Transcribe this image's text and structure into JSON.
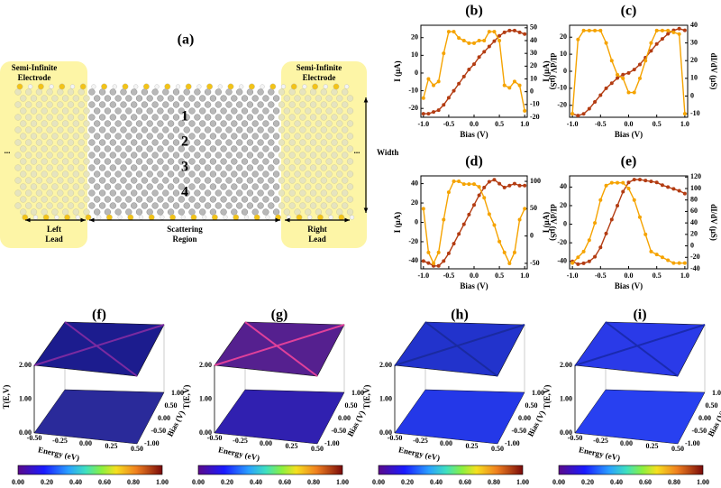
{
  "panel_a": {
    "label": "(a)",
    "electrode": [
      "Semi-Infinite",
      "Electrode"
    ],
    "left_lead": [
      "Left",
      "Lead"
    ],
    "scattering": [
      "Scattering",
      "Region"
    ],
    "right_lead": [
      "Right",
      "Lead"
    ],
    "width": "Width",
    "channels": [
      "1",
      "2",
      "3",
      "4"
    ],
    "ellipsis": "..."
  },
  "chart_data": [
    {
      "type": "line",
      "label": "(b)",
      "xlabel": "Bias (V)",
      "ylabel": "I (μA)",
      "y2label": "dI/dV (μS)",
      "x": [
        -1.0,
        -0.9,
        -0.8,
        -0.7,
        -0.6,
        -0.5,
        -0.4,
        -0.3,
        -0.2,
        -0.1,
        0.0,
        0.1,
        0.2,
        0.3,
        0.4,
        0.5,
        0.6,
        0.7,
        0.8,
        0.9,
        1.0
      ],
      "xlim": [
        -1.05,
        1.05
      ],
      "xticks": [
        {
          "value": -1,
          "label": "-1.0"
        },
        -0.5,
        {
          "value": 0,
          "label": "0.0"
        },
        0.5,
        {
          "value": 1,
          "label": "1.0"
        }
      ],
      "ylim": [
        -25,
        27
      ],
      "yticks": [
        -20,
        -10,
        0,
        10,
        20
      ],
      "y2lim": [
        -20,
        52
      ],
      "y2ticks": [
        -20,
        -10,
        0,
        10,
        20,
        30,
        40,
        50
      ],
      "series": [
        {
          "color": "#b33c12",
          "values": [
            -23,
            -23,
            -22,
            -21,
            -18,
            -14,
            -10,
            -6,
            -2,
            2,
            5,
            9,
            12,
            15,
            18,
            21,
            23,
            24,
            24,
            23,
            22
          ]
        },
        {
          "color": "#f5a300",
          "axis": "y2",
          "values": [
            -5,
            10,
            5,
            8,
            30,
            47,
            47,
            42,
            40,
            38,
            38,
            40,
            40,
            47,
            47,
            40,
            5,
            3,
            8,
            5,
            -15
          ]
        }
      ]
    },
    {
      "type": "line",
      "label": "(c)",
      "xlabel": "Bias (V)",
      "ylabel": "I (μA)",
      "y2label": "dI/dV (μS)",
      "x": [
        -1.0,
        -0.9,
        -0.8,
        -0.7,
        -0.6,
        -0.5,
        -0.4,
        -0.3,
        -0.2,
        -0.1,
        0.0,
        0.1,
        0.2,
        0.3,
        0.4,
        0.5,
        0.6,
        0.7,
        0.8,
        0.9,
        1.0
      ],
      "xlim": [
        -1.05,
        1.05
      ],
      "xticks": [
        {
          "value": -1,
          "label": "-1.0"
        },
        -0.5,
        {
          "value": 0,
          "label": "0.0"
        },
        0.5,
        {
          "value": 1,
          "label": "1.0"
        }
      ],
      "ylim": [
        -27,
        27
      ],
      "yticks": [
        -20,
        -10,
        0,
        10,
        20
      ],
      "y2lim": [
        -12,
        40
      ],
      "y2ticks": [
        -10,
        0,
        10,
        20,
        30,
        40
      ],
      "series": [
        {
          "color": "#b33c12",
          "values": [
            -25,
            -26,
            -25,
            -22,
            -18,
            -14,
            -10,
            -7,
            -4,
            -2,
            -1,
            1,
            4,
            8,
            12,
            16,
            19,
            22,
            24,
            25,
            24
          ]
        },
        {
          "color": "#f5a300",
          "axis": "y2",
          "values": [
            -10,
            32,
            37,
            37,
            37,
            37,
            30,
            20,
            12,
            10,
            2,
            2,
            10,
            20,
            30,
            37,
            37,
            37,
            36,
            35,
            -10
          ]
        }
      ]
    },
    {
      "type": "line",
      "label": "(d)",
      "xlabel": "Bias (V)",
      "ylabel": "I (μA)",
      "y2label": "dI/dV (μS)",
      "x": [
        -1.0,
        -0.9,
        -0.8,
        -0.7,
        -0.6,
        -0.5,
        -0.4,
        -0.3,
        -0.2,
        -0.1,
        0.0,
        0.1,
        0.2,
        0.3,
        0.4,
        0.5,
        0.6,
        0.7,
        0.8,
        0.9,
        1.0
      ],
      "xlim": [
        -1.05,
        1.05
      ],
      "xticks": [
        {
          "value": -1,
          "label": "-1.0"
        },
        -0.5,
        {
          "value": 0,
          "label": "0.0"
        },
        0.5,
        {
          "value": 1,
          "label": "1.0"
        }
      ],
      "ylim": [
        -48,
        48
      ],
      "yticks": [
        -40,
        -20,
        0,
        20,
        40
      ],
      "y2lim": [
        -60,
        110
      ],
      "y2ticks": [
        -50,
        0,
        50,
        100
      ],
      "series": [
        {
          "color": "#b33c12",
          "values": [
            -40,
            -42,
            -45,
            -45,
            -40,
            -32,
            -22,
            -12,
            -2,
            8,
            18,
            28,
            36,
            42,
            44,
            40,
            36,
            38,
            40,
            38,
            38
          ]
        },
        {
          "color": "#f5a300",
          "axis": "y2",
          "values": [
            50,
            -30,
            -50,
            -30,
            30,
            80,
            100,
            100,
            95,
            95,
            95,
            90,
            70,
            40,
            20,
            -10,
            -30,
            -50,
            -30,
            30,
            50
          ]
        }
      ]
    },
    {
      "type": "line",
      "label": "(e)",
      "xlabel": "Bias (V)",
      "ylabel": "I (μA)",
      "y2label": "dI/dV (μS)",
      "x": [
        -1.0,
        -0.9,
        -0.8,
        -0.7,
        -0.6,
        -0.5,
        -0.4,
        -0.3,
        -0.2,
        -0.1,
        0.0,
        0.1,
        0.2,
        0.3,
        0.4,
        0.5,
        0.6,
        0.7,
        0.8,
        0.9,
        1.0
      ],
      "xlim": [
        -1.05,
        1.05
      ],
      "xticks": [
        {
          "value": -1,
          "label": "-1.0"
        },
        -0.5,
        {
          "value": 0,
          "label": "0.0"
        },
        0.5,
        {
          "value": 1,
          "label": "1.0"
        }
      ],
      "ylim": [
        -48,
        52
      ],
      "yticks": [
        -40,
        -20,
        0,
        20,
        40
      ],
      "y2lim": [
        -40,
        122
      ],
      "y2ticks": [
        -40,
        -20,
        0,
        20,
        40,
        60,
        80,
        100,
        120
      ],
      "series": [
        {
          "color": "#b33c12",
          "values": [
            -40,
            -43,
            -42,
            -40,
            -35,
            -25,
            -10,
            5,
            20,
            35,
            45,
            48,
            48,
            47,
            46,
            45,
            42,
            40,
            38,
            36,
            33
          ]
        },
        {
          "color": "#f5a300",
          "axis": "y2",
          "values": [
            -30,
            -20,
            -10,
            10,
            40,
            80,
            105,
            110,
            110,
            110,
            100,
            80,
            50,
            20,
            -10,
            -15,
            -20,
            -25,
            -30,
            -30,
            -30
          ]
        }
      ]
    }
  ],
  "surfaces": [
    {
      "label": "(f)"
    },
    {
      "label": "(g)"
    },
    {
      "label": "(h)"
    },
    {
      "label": "(i)"
    }
  ],
  "surface_axes": {
    "zlabel": "T(E,V)",
    "xlabel": "Energy (eV)",
    "ylabel": "Bias (V)",
    "zticks": [
      "2.00",
      "1.00",
      "0.00"
    ],
    "xticks": [
      "-0.50",
      "-0.25",
      "0.00",
      "0.25",
      "0.50"
    ],
    "yticks": [
      "-1.00",
      "-0.50",
      "0.00",
      "0.50",
      "1.00"
    ],
    "colorbar_ticks": [
      "0.00",
      "0.20",
      "0.40",
      "0.60",
      "0.80",
      "1.00"
    ]
  }
}
